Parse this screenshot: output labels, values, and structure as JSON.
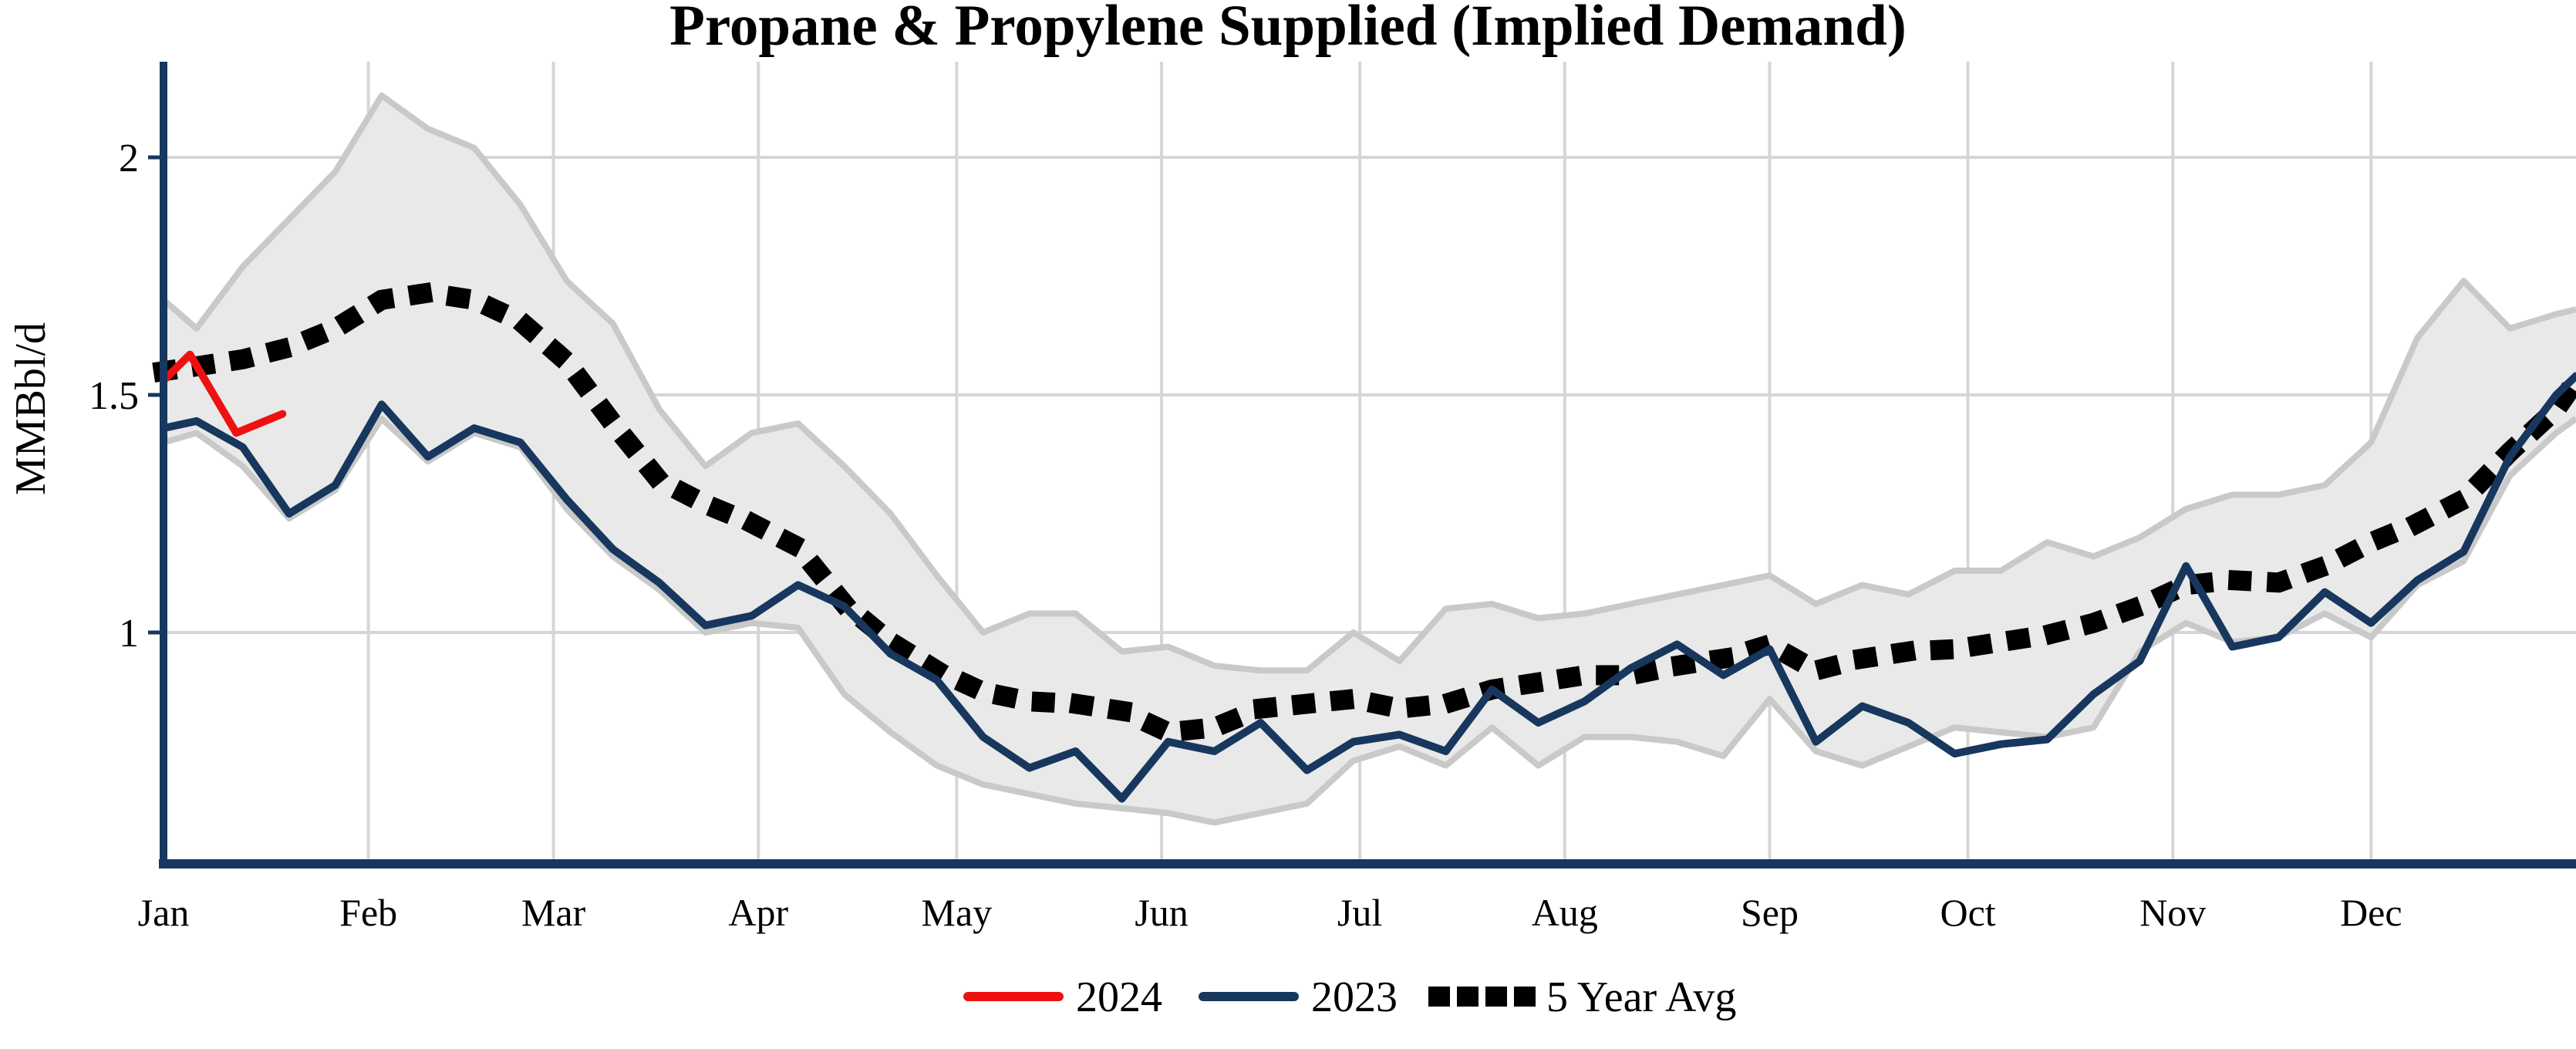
{
  "title": "Propane & Propylene Supplied (Implied Demand)",
  "y_axis": {
    "label": "MMBbl/d",
    "tick_labels": [
      "2",
      "1.5",
      "1"
    ],
    "tick_values": [
      2,
      1.5,
      1
    ]
  },
  "x_axis": {
    "months": [
      "Jan",
      "Feb",
      "Mar",
      "Apr",
      "May",
      "Jun",
      "Jul",
      "Aug",
      "Sep",
      "Oct",
      "Nov",
      "Dec"
    ],
    "month_start_days": [
      0,
      31,
      59,
      90,
      120,
      151,
      181,
      212,
      243,
      273,
      304,
      334
    ],
    "days_in_year": 365
  },
  "legend": [
    {
      "label": "2024",
      "color": "#ee1111",
      "style": "solid"
    },
    {
      "label": "2023",
      "color": "#17375e",
      "style": "solid"
    },
    {
      "label": "5 Year Avg",
      "color": "#000000",
      "style": "dotted"
    }
  ],
  "colors": {
    "series_2024": "#ee1111",
    "series_2023": "#17375e",
    "series_5yr": "#000000",
    "band_fill": "#e9e9e9",
    "band_edge": "#c9c9c9",
    "gridline": "#d6d6d6",
    "axis": "#17375e",
    "background": "#ffffff"
  },
  "chart_data": {
    "type": "line",
    "title": "Propane & Propylene Supplied (Implied Demand)",
    "xlabel": "",
    "ylabel": "MMBbl/d",
    "x_unit": "day_of_year",
    "y_unit": "MMBbl/d",
    "ylim": [
      0.51,
      2.2
    ],
    "xlim_days": [
      0,
      365
    ],
    "grid": "on",
    "legend_position": "bottom-center",
    "series": [
      {
        "name": "2024",
        "style": "solid",
        "color": "#ee1111",
        "points": [
          [
            0,
            1.53
          ],
          [
            4,
            1.585
          ],
          [
            11,
            1.42
          ],
          [
            18,
            1.46
          ]
        ]
      },
      {
        "name": "2023",
        "style": "solid",
        "color": "#17375e",
        "points": [
          [
            0,
            1.43
          ],
          [
            5,
            1.445
          ],
          [
            12,
            1.39
          ],
          [
            19,
            1.25
          ],
          [
            26,
            1.31
          ],
          [
            33,
            1.48
          ],
          [
            40,
            1.37
          ],
          [
            47,
            1.43
          ],
          [
            54,
            1.4
          ],
          [
            61,
            1.28
          ],
          [
            68,
            1.175
          ],
          [
            75,
            1.105
          ],
          [
            82,
            1.015
          ],
          [
            89,
            1.035
          ],
          [
            96,
            1.1
          ],
          [
            103,
            1.055
          ],
          [
            110,
            0.955
          ],
          [
            117,
            0.9
          ],
          [
            124,
            0.78
          ],
          [
            131,
            0.715
          ],
          [
            138,
            0.75
          ],
          [
            145,
            0.65
          ],
          [
            152,
            0.77
          ],
          [
            159,
            0.75
          ],
          [
            166,
            0.81
          ],
          [
            173,
            0.71
          ],
          [
            180,
            0.77
          ],
          [
            187,
            0.785
          ],
          [
            194,
            0.75
          ],
          [
            201,
            0.88
          ],
          [
            208,
            0.81
          ],
          [
            215,
            0.855
          ],
          [
            222,
            0.925
          ],
          [
            229,
            0.975
          ],
          [
            236,
            0.91
          ],
          [
            243,
            0.965
          ],
          [
            250,
            0.77
          ],
          [
            257,
            0.845
          ],
          [
            264,
            0.81
          ],
          [
            271,
            0.745
          ],
          [
            278,
            0.765
          ],
          [
            285,
            0.775
          ],
          [
            292,
            0.87
          ],
          [
            299,
            0.94
          ],
          [
            306,
            1.14
          ],
          [
            313,
            0.97
          ],
          [
            320,
            0.99
          ],
          [
            327,
            1.085
          ],
          [
            334,
            1.02
          ],
          [
            341,
            1.11
          ],
          [
            348,
            1.17
          ],
          [
            355,
            1.37
          ],
          [
            362,
            1.5
          ],
          [
            365,
            1.54
          ]
        ]
      },
      {
        "name": "5 Year Avg",
        "style": "dotted",
        "color": "#000000",
        "points": [
          [
            0,
            1.55
          ],
          [
            5,
            1.56
          ],
          [
            12,
            1.575
          ],
          [
            19,
            1.6
          ],
          [
            26,
            1.64
          ],
          [
            33,
            1.7
          ],
          [
            40,
            1.715
          ],
          [
            47,
            1.7
          ],
          [
            54,
            1.655
          ],
          [
            61,
            1.57
          ],
          [
            68,
            1.44
          ],
          [
            75,
            1.32
          ],
          [
            82,
            1.27
          ],
          [
            89,
            1.23
          ],
          [
            96,
            1.18
          ],
          [
            103,
            1.06
          ],
          [
            110,
            0.98
          ],
          [
            117,
            0.92
          ],
          [
            124,
            0.875
          ],
          [
            131,
            0.855
          ],
          [
            138,
            0.85
          ],
          [
            145,
            0.835
          ],
          [
            152,
            0.79
          ],
          [
            159,
            0.8
          ],
          [
            166,
            0.84
          ],
          [
            173,
            0.85
          ],
          [
            180,
            0.86
          ],
          [
            187,
            0.84
          ],
          [
            194,
            0.85
          ],
          [
            201,
            0.88
          ],
          [
            208,
            0.895
          ],
          [
            215,
            0.91
          ],
          [
            222,
            0.91
          ],
          [
            229,
            0.93
          ],
          [
            236,
            0.945
          ],
          [
            243,
            0.975
          ],
          [
            250,
            0.92
          ],
          [
            257,
            0.945
          ],
          [
            264,
            0.96
          ],
          [
            271,
            0.965
          ],
          [
            278,
            0.98
          ],
          [
            285,
            0.995
          ],
          [
            292,
            1.02
          ],
          [
            299,
            1.055
          ],
          [
            306,
            1.1
          ],
          [
            313,
            1.11
          ],
          [
            320,
            1.105
          ],
          [
            327,
            1.14
          ],
          [
            334,
            1.19
          ],
          [
            341,
            1.23
          ],
          [
            348,
            1.28
          ],
          [
            355,
            1.38
          ],
          [
            362,
            1.47
          ],
          [
            365,
            1.53
          ]
        ]
      }
    ],
    "band": {
      "name": "5 Year Range",
      "fill": "#e9e9e9",
      "edge": "#c9c9c9",
      "top": [
        [
          0,
          1.7
        ],
        [
          5,
          1.64
        ],
        [
          12,
          1.77
        ],
        [
          19,
          1.87
        ],
        [
          26,
          1.97
        ],
        [
          33,
          2.13
        ],
        [
          40,
          2.06
        ],
        [
          47,
          2.02
        ],
        [
          54,
          1.9
        ],
        [
          61,
          1.74
        ],
        [
          68,
          1.65
        ],
        [
          75,
          1.47
        ],
        [
          82,
          1.35
        ],
        [
          89,
          1.42
        ],
        [
          96,
          1.44
        ],
        [
          103,
          1.35
        ],
        [
          110,
          1.25
        ],
        [
          117,
          1.12
        ],
        [
          124,
          1.0
        ],
        [
          131,
          1.04
        ],
        [
          138,
          1.04
        ],
        [
          145,
          0.96
        ],
        [
          152,
          0.97
        ],
        [
          159,
          0.93
        ],
        [
          166,
          0.92
        ],
        [
          173,
          0.92
        ],
        [
          180,
          1.0
        ],
        [
          187,
          0.94
        ],
        [
          194,
          1.05
        ],
        [
          201,
          1.06
        ],
        [
          208,
          1.03
        ],
        [
          215,
          1.04
        ],
        [
          222,
          1.06
        ],
        [
          229,
          1.08
        ],
        [
          236,
          1.1
        ],
        [
          243,
          1.12
        ],
        [
          250,
          1.06
        ],
        [
          257,
          1.1
        ],
        [
          264,
          1.08
        ],
        [
          271,
          1.13
        ],
        [
          278,
          1.13
        ],
        [
          285,
          1.19
        ],
        [
          292,
          1.16
        ],
        [
          299,
          1.2
        ],
        [
          306,
          1.26
        ],
        [
          313,
          1.29
        ],
        [
          320,
          1.29
        ],
        [
          327,
          1.31
        ],
        [
          334,
          1.4
        ],
        [
          341,
          1.62
        ],
        [
          348,
          1.74
        ],
        [
          355,
          1.64
        ],
        [
          362,
          1.67
        ],
        [
          365,
          1.68
        ]
      ],
      "bottom": [
        [
          0,
          1.4
        ],
        [
          5,
          1.42
        ],
        [
          12,
          1.35
        ],
        [
          19,
          1.24
        ],
        [
          26,
          1.3
        ],
        [
          33,
          1.45
        ],
        [
          40,
          1.36
        ],
        [
          47,
          1.42
        ],
        [
          54,
          1.39
        ],
        [
          61,
          1.26
        ],
        [
          68,
          1.16
        ],
        [
          75,
          1.09
        ],
        [
          82,
          1.0
        ],
        [
          89,
          1.02
        ],
        [
          96,
          1.01
        ],
        [
          103,
          0.87
        ],
        [
          110,
          0.79
        ],
        [
          117,
          0.72
        ],
        [
          124,
          0.68
        ],
        [
          131,
          0.66
        ],
        [
          138,
          0.64
        ],
        [
          145,
          0.63
        ],
        [
          152,
          0.62
        ],
        [
          159,
          0.6
        ],
        [
          166,
          0.62
        ],
        [
          173,
          0.64
        ],
        [
          180,
          0.73
        ],
        [
          187,
          0.76
        ],
        [
          194,
          0.72
        ],
        [
          201,
          0.8
        ],
        [
          208,
          0.72
        ],
        [
          215,
          0.78
        ],
        [
          222,
          0.78
        ],
        [
          229,
          0.77
        ],
        [
          236,
          0.74
        ],
        [
          243,
          0.86
        ],
        [
          250,
          0.75
        ],
        [
          257,
          0.72
        ],
        [
          264,
          0.76
        ],
        [
          271,
          0.8
        ],
        [
          278,
          0.79
        ],
        [
          285,
          0.78
        ],
        [
          292,
          0.8
        ],
        [
          299,
          0.96
        ],
        [
          306,
          1.02
        ],
        [
          313,
          0.98
        ],
        [
          320,
          0.99
        ],
        [
          327,
          1.04
        ],
        [
          334,
          0.99
        ],
        [
          341,
          1.1
        ],
        [
          348,
          1.15
        ],
        [
          355,
          1.33
        ],
        [
          362,
          1.42
        ],
        [
          365,
          1.45
        ]
      ]
    }
  }
}
